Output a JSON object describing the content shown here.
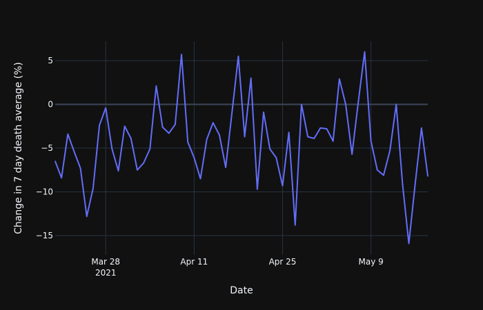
{
  "chart_data": {
    "type": "line",
    "title": "",
    "xlabel": "Date",
    "ylabel": "Change in 7 day death average (%)",
    "grid": true,
    "legend": "none",
    "xlim": [
      "2021-03-20",
      "2021-05-18"
    ],
    "ylim": [
      -17.2,
      7.2
    ],
    "x_ticks": [
      {
        "date": "2021-03-28",
        "label": "Mar 28",
        "sublabel": "2021"
      },
      {
        "date": "2021-04-11",
        "label": "Apr 11",
        "sublabel": ""
      },
      {
        "date": "2021-04-25",
        "label": "Apr 25",
        "sublabel": ""
      },
      {
        "date": "2021-05-09",
        "label": "May 9",
        "sublabel": ""
      }
    ],
    "y_ticks": [
      {
        "value": 5,
        "label": "5"
      },
      {
        "value": 0,
        "label": "0"
      },
      {
        "value": -5,
        "label": "−5"
      },
      {
        "value": -10,
        "label": "−10"
      },
      {
        "value": -15,
        "label": "−15"
      }
    ],
    "series": [
      {
        "color": "#636efa",
        "points": [
          {
            "x": "2021-03-20",
            "y": -6.5
          },
          {
            "x": "2021-03-21",
            "y": -8.4
          },
          {
            "x": "2021-03-22",
            "y": -3.4
          },
          {
            "x": "2021-03-23",
            "y": -5.4
          },
          {
            "x": "2021-03-24",
            "y": -7.3
          },
          {
            "x": "2021-03-25",
            "y": -12.8
          },
          {
            "x": "2021-03-26",
            "y": -9.6
          },
          {
            "x": "2021-03-27",
            "y": -2.4
          },
          {
            "x": "2021-03-28",
            "y": -0.4
          },
          {
            "x": "2021-03-29",
            "y": -5.1
          },
          {
            "x": "2021-03-30",
            "y": -7.6
          },
          {
            "x": "2021-03-31",
            "y": -2.5
          },
          {
            "x": "2021-04-01",
            "y": -3.9
          },
          {
            "x": "2021-04-02",
            "y": -7.5
          },
          {
            "x": "2021-04-03",
            "y": -6.7
          },
          {
            "x": "2021-04-04",
            "y": -5.1
          },
          {
            "x": "2021-04-05",
            "y": 2.1
          },
          {
            "x": "2021-04-06",
            "y": -2.6
          },
          {
            "x": "2021-04-07",
            "y": -3.3
          },
          {
            "x": "2021-04-08",
            "y": -2.3
          },
          {
            "x": "2021-04-09",
            "y": 5.7
          },
          {
            "x": "2021-04-10",
            "y": -4.3
          },
          {
            "x": "2021-04-11",
            "y": -6.1
          },
          {
            "x": "2021-04-12",
            "y": -8.5
          },
          {
            "x": "2021-04-13",
            "y": -4.0
          },
          {
            "x": "2021-04-14",
            "y": -2.1
          },
          {
            "x": "2021-04-15",
            "y": -3.5
          },
          {
            "x": "2021-04-16",
            "y": -7.2
          },
          {
            "x": "2021-04-17",
            "y": -0.9
          },
          {
            "x": "2021-04-18",
            "y": 5.5
          },
          {
            "x": "2021-04-19",
            "y": -3.7
          },
          {
            "x": "2021-04-20",
            "y": 3.0
          },
          {
            "x": "2021-04-21",
            "y": -9.7
          },
          {
            "x": "2021-04-22",
            "y": -0.9
          },
          {
            "x": "2021-04-23",
            "y": -5.1
          },
          {
            "x": "2021-04-24",
            "y": -6.1
          },
          {
            "x": "2021-04-25",
            "y": -9.3
          },
          {
            "x": "2021-04-26",
            "y": -3.2
          },
          {
            "x": "2021-04-27",
            "y": -13.8
          },
          {
            "x": "2021-04-28",
            "y": 0.0
          },
          {
            "x": "2021-04-29",
            "y": -3.7
          },
          {
            "x": "2021-04-30",
            "y": -3.9
          },
          {
            "x": "2021-05-01",
            "y": -2.7
          },
          {
            "x": "2021-05-02",
            "y": -2.8
          },
          {
            "x": "2021-05-03",
            "y": -4.2
          },
          {
            "x": "2021-05-04",
            "y": 2.9
          },
          {
            "x": "2021-05-05",
            "y": 0.0
          },
          {
            "x": "2021-05-06",
            "y": -5.7
          },
          {
            "x": "2021-05-07",
            "y": 0.3
          },
          {
            "x": "2021-05-08",
            "y": 6.0
          },
          {
            "x": "2021-05-09",
            "y": -4.2
          },
          {
            "x": "2021-05-10",
            "y": -7.5
          },
          {
            "x": "2021-05-11",
            "y": -8.1
          },
          {
            "x": "2021-05-12",
            "y": -5.3
          },
          {
            "x": "2021-05-13",
            "y": 0.0
          },
          {
            "x": "2021-05-14",
            "y": -9.1
          },
          {
            "x": "2021-05-15",
            "y": -15.9
          },
          {
            "x": "2021-05-16",
            "y": -9.1
          },
          {
            "x": "2021-05-17",
            "y": -2.7
          },
          {
            "x": "2021-05-18",
            "y": -8.2
          }
        ]
      }
    ]
  }
}
